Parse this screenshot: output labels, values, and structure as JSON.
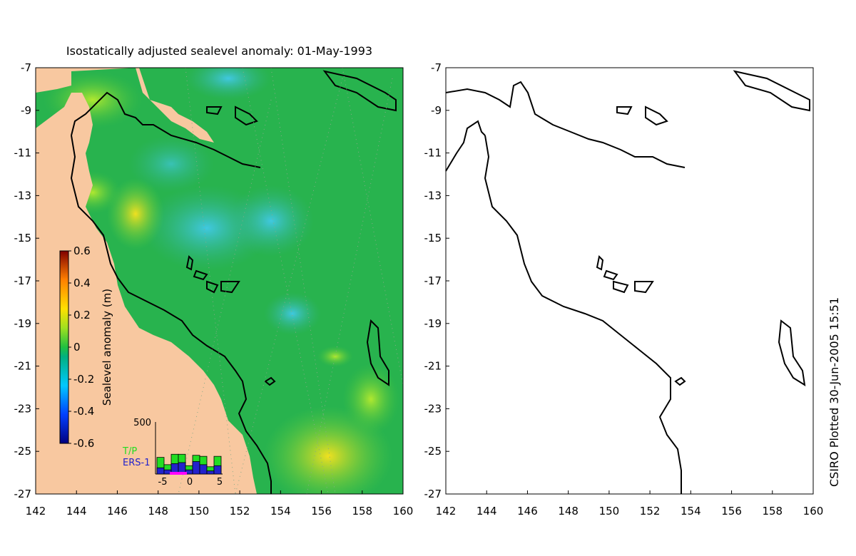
{
  "title": "Isostatically adjusted sealevel anomaly: 01-May-1993",
  "side_caption": "CSIRO Plotted 30-Jun-2005 15:51",
  "axes": {
    "y_ticks": [
      "-7",
      "-9",
      "-11",
      "-13",
      "-15",
      "-17",
      "-19",
      "-21",
      "-23",
      "-25",
      "-27"
    ],
    "x_ticks": [
      "142",
      "144",
      "146",
      "148",
      "150",
      "152",
      "154",
      "156",
      "158",
      "160"
    ]
  },
  "colorbar": {
    "label": "Sealevel anomaly (m)",
    "ticks": [
      "0.6",
      "0.4",
      "0.2",
      "0",
      "-0.2",
      "-0.4",
      "-0.6"
    ]
  },
  "inset": {
    "ytick": "500",
    "legend": [
      "T/P",
      "ERS-1"
    ],
    "xticks": [
      "-5",
      "0",
      "5"
    ],
    "tp_bars": [
      0.32,
      0.18,
      0.38,
      0.38,
      0.16,
      0.36,
      0.34,
      0.14,
      0.34
    ],
    "ers_bars": [
      0.12,
      0.08,
      0.2,
      0.22,
      0.08,
      0.24,
      0.18,
      0.06,
      0.16
    ]
  },
  "colors": {
    "land": "#f8c8a0",
    "ocean_base": "#27b04b",
    "tp_color": "#22dd22",
    "ers_color": "#2222cc"
  }
}
